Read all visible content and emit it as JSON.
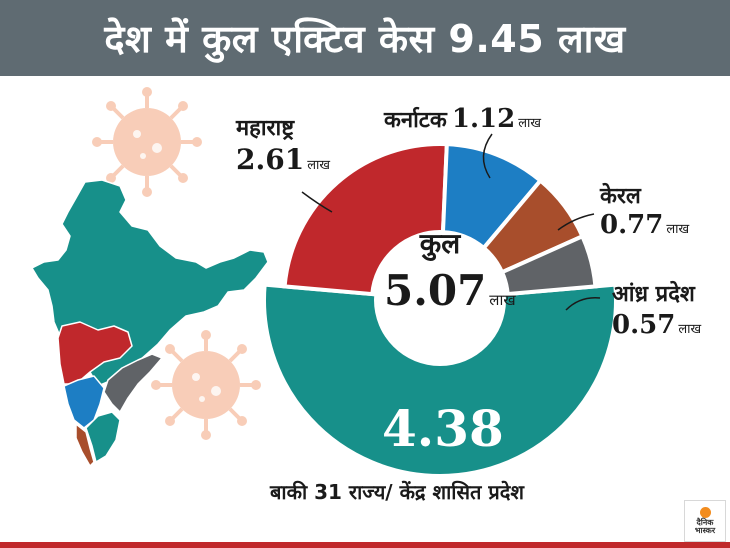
{
  "title": "देश में कुल एक्टिव केस 9.45 लाख",
  "unit": "लाख",
  "colors": {
    "maharashtra": "#c0282c",
    "karnataka": "#1d7ec4",
    "kerala": "#a84e2c",
    "andhra": "#606367",
    "rest": "#17908a",
    "title_bg": "#5f6b72",
    "virus": "#f8cdb8"
  },
  "center": {
    "label": "कुल",
    "value": "5.07",
    "unit": "लाख"
  },
  "rest": {
    "value": "4.38",
    "label": "बाकी 31 राज्य/ केंद्र शासित प्रदेश"
  },
  "slices": [
    {
      "name": "महाराष्ट्र",
      "value": "2.61",
      "unit": "लाख"
    },
    {
      "name": "कर्नाटक",
      "value": "1.12",
      "unit": "लाख"
    },
    {
      "name": "केरल",
      "value": "0.77",
      "unit": "लाख"
    },
    {
      "name": "आंध्र प्रदेश",
      "value": "0.57",
      "unit": "लाख"
    }
  ],
  "chart_data": {
    "type": "pie",
    "title": "देश में कुल एक्टिव केस 9.45 लाख",
    "inner": {
      "categories": [
        "महाराष्ट्र",
        "कर्नाटक",
        "केरल",
        "आंध्र प्रदेश"
      ],
      "values": [
        2.61,
        1.12,
        0.77,
        0.57
      ],
      "total": 5.07
    },
    "outer": {
      "categories": [
        "बाकी 31 राज्य/ केंद्र शासित प्रदेश"
      ],
      "values": [
        4.38
      ]
    },
    "grand_total": 9.45,
    "unit": "लाख"
  },
  "logo": {
    "line1": "दैनिक",
    "line2": "भास्कर"
  }
}
